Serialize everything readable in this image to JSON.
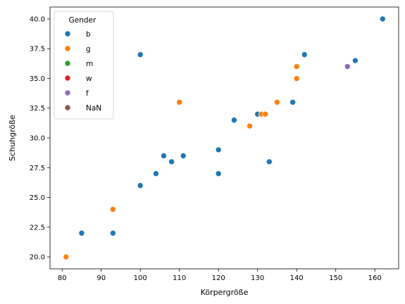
{
  "chart_data": {
    "type": "scatter",
    "xlabel": "Körpergröße",
    "ylabel": "Schuhgröße",
    "xlim": [
      76.9,
      166.1
    ],
    "ylim": [
      19.0,
      41.0
    ],
    "xticks": [
      80,
      90,
      100,
      110,
      120,
      130,
      140,
      150,
      160
    ],
    "yticks": [
      20.0,
      22.5,
      25.0,
      27.5,
      30.0,
      32.5,
      35.0,
      37.5,
      40.0
    ],
    "ytick_labels": [
      "20.0",
      "22.5",
      "25.0",
      "27.5",
      "30.0",
      "32.5",
      "35.0",
      "37.5",
      "40.0"
    ],
    "grid": false,
    "legend": {
      "title": "Gender",
      "placement": "top-left",
      "entries": [
        {
          "label": "b",
          "color": "#1f77b4"
        },
        {
          "label": "g",
          "color": "#ff7f0e"
        },
        {
          "label": "m",
          "color": "#2ca02c"
        },
        {
          "label": "w",
          "color": "#d62728"
        },
        {
          "label": "f",
          "color": "#9467bd"
        },
        {
          "label": "NaN",
          "color": "#8c564b"
        }
      ]
    },
    "series": [
      {
        "name": "b",
        "color": "#1f77b4",
        "points": [
          {
            "x": 85,
            "y": 22
          },
          {
            "x": 93,
            "y": 22
          },
          {
            "x": 100,
            "y": 26
          },
          {
            "x": 100,
            "y": 37
          },
          {
            "x": 104,
            "y": 27
          },
          {
            "x": 106,
            "y": 28.5
          },
          {
            "x": 108,
            "y": 28
          },
          {
            "x": 111,
            "y": 28.5
          },
          {
            "x": 120,
            "y": 29
          },
          {
            "x": 120,
            "y": 27
          },
          {
            "x": 124,
            "y": 31.5
          },
          {
            "x": 130,
            "y": 32
          },
          {
            "x": 133,
            "y": 28
          },
          {
            "x": 139,
            "y": 33
          },
          {
            "x": 142,
            "y": 37
          },
          {
            "x": 155,
            "y": 36.5
          },
          {
            "x": 162,
            "y": 40
          }
        ]
      },
      {
        "name": "g",
        "color": "#ff7f0e",
        "points": [
          {
            "x": 81,
            "y": 20
          },
          {
            "x": 93,
            "y": 24
          },
          {
            "x": 110,
            "y": 33
          },
          {
            "x": 128,
            "y": 31
          },
          {
            "x": 131,
            "y": 32
          },
          {
            "x": 132,
            "y": 32
          },
          {
            "x": 135,
            "y": 33
          },
          {
            "x": 140,
            "y": 36
          },
          {
            "x": 140,
            "y": 35
          }
        ]
      },
      {
        "name": "m",
        "color": "#2ca02c",
        "points": []
      },
      {
        "name": "w",
        "color": "#d62728",
        "points": []
      },
      {
        "name": "f",
        "color": "#9467bd",
        "points": [
          {
            "x": 153,
            "y": 36
          }
        ]
      },
      {
        "name": "NaN",
        "color": "#8c564b",
        "points": []
      }
    ]
  }
}
